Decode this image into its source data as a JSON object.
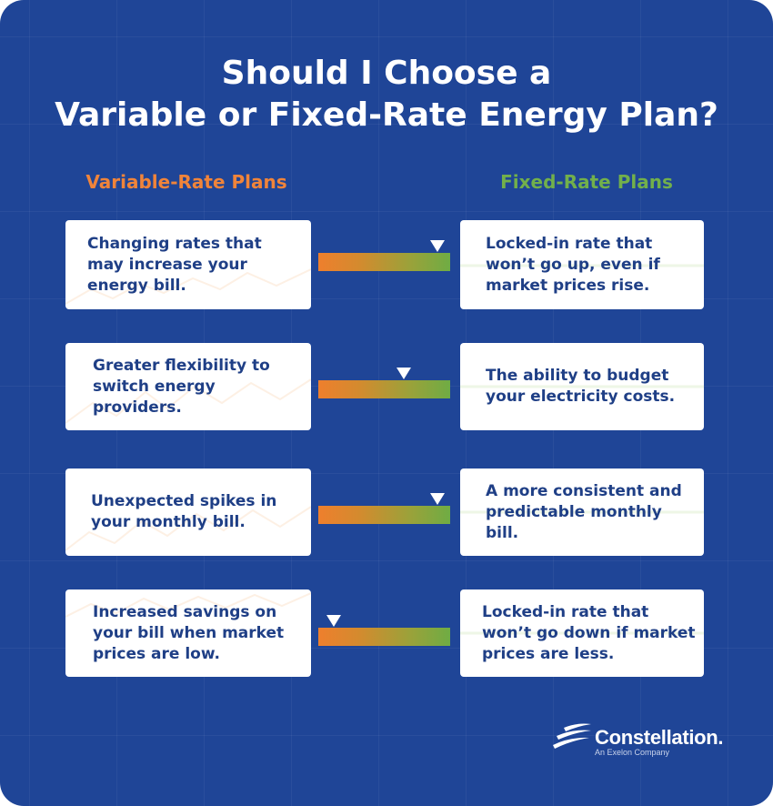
{
  "title": {
    "line1": "Should I Choose a",
    "line2": "Variable or Fixed-Rate Energy Plan?"
  },
  "columns": {
    "variable_heading": "Variable-Rate Plans",
    "fixed_heading": "Fixed-Rate Plans"
  },
  "rows": [
    {
      "variable": "Changing rates that may increase your energy bill.",
      "fixed": "Locked-in rate that won’t go up, even if market prices rise.",
      "marker_position": 0.9
    },
    {
      "variable": "Greater flexibility to switch energy providers.",
      "fixed": "The ability to budget your electricity costs.",
      "marker_position": 0.65
    },
    {
      "variable": "Unexpected spikes in your monthly bill.",
      "fixed": "A more consistent and predictable monthly bill.",
      "marker_position": 0.9
    },
    {
      "variable": "Increased savings on your bill when market prices are low.",
      "fixed": "Locked-in rate that won’t go down if market prices are less.",
      "marker_position": 0.12
    }
  ],
  "brand": {
    "name": "Constellation.",
    "tagline": "An Exelon Company"
  },
  "colors": {
    "background": "#1f4597",
    "variable_accent": "#f0843a",
    "fixed_accent": "#72b04b",
    "card_text": "#1f3f86"
  }
}
